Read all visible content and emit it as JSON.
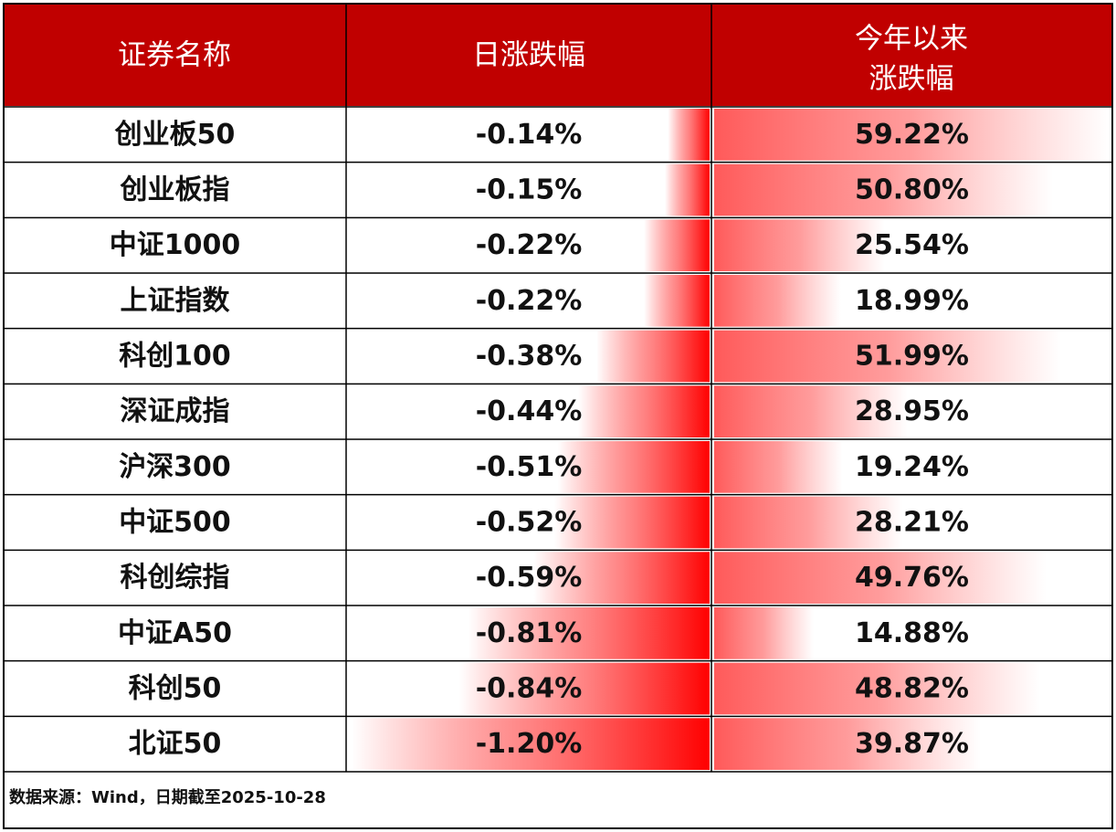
{
  "header": {
    "columns": [
      "证券名称",
      "日涨跌幅",
      [
        "今年以来",
        "涨跌幅"
      ]
    ]
  },
  "table": {
    "names": [
      "创业板50",
      "创业板指",
      "中证1000",
      "上证指数",
      "科创100",
      "深证成指",
      "沪深300",
      "中证500",
      "科创综指",
      "中证A50",
      "科创50",
      "北证50"
    ],
    "daily": {
      "values": [
        -0.14,
        -0.15,
        -0.22,
        -0.22,
        -0.38,
        -0.44,
        -0.51,
        -0.52,
        -0.59,
        -0.81,
        -0.84,
        -1.2
      ],
      "value_labels": [
        "-0.14%",
        "-0.15%",
        "-0.22%",
        "-0.22%",
        "-0.38%",
        "-0.44%",
        "-0.51%",
        "-0.52%",
        "-0.59%",
        "-0.81%",
        "-0.84%",
        "-1.20%"
      ]
    },
    "ytd": {
      "values": [
        59.22,
        50.8,
        25.54,
        18.99,
        51.99,
        28.95,
        19.24,
        28.21,
        49.76,
        14.88,
        48.82,
        39.87
      ],
      "value_labels": [
        "59.22%",
        "50.80%",
        "25.54%",
        "18.99%",
        "51.99%",
        "28.95%",
        "19.24%",
        "28.21%",
        "49.76%",
        "14.88%",
        "48.82%",
        "39.87%"
      ]
    }
  },
  "footer": {
    "source": "数据来源：Wind，日期截至2025-10-28"
  }
}
